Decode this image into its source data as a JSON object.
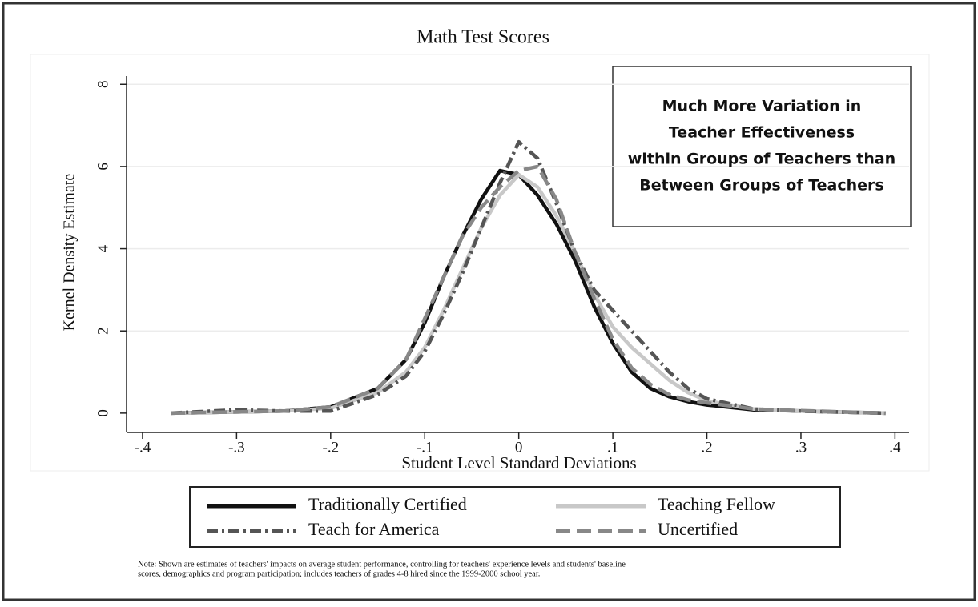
{
  "chart_data": {
    "type": "line",
    "title": "Math Test Scores",
    "xlabel": "Student Level Standard Deviations",
    "ylabel": "Kernel Density Estimate",
    "x": [
      -0.37,
      -0.3,
      -0.25,
      -0.2,
      -0.15,
      -0.12,
      -0.1,
      -0.08,
      -0.06,
      -0.04,
      -0.02,
      0,
      0.02,
      0.04,
      0.06,
      0.08,
      0.1,
      0.12,
      0.14,
      0.16,
      0.18,
      0.2,
      0.25,
      0.3,
      0.39
    ],
    "series": [
      {
        "name": "Traditionally Certified",
        "color": "#111111",
        "style": "solid",
        "values": [
          0,
          0.03,
          0.05,
          0.15,
          0.6,
          1.3,
          2.2,
          3.3,
          4.3,
          5.2,
          5.9,
          5.8,
          5.3,
          4.6,
          3.7,
          2.6,
          1.7,
          1.0,
          0.6,
          0.4,
          0.28,
          0.2,
          0.08,
          0.05,
          0
        ]
      },
      {
        "name": "Teaching Fellow",
        "color": "#c8c8c8",
        "style": "solid",
        "values": [
          0,
          0.03,
          0.05,
          0.12,
          0.5,
          1.0,
          1.6,
          2.5,
          3.5,
          4.5,
          5.3,
          5.8,
          5.5,
          4.8,
          3.9,
          2.9,
          2.1,
          1.6,
          1.2,
          0.8,
          0.5,
          0.3,
          0.1,
          0.05,
          0
        ]
      },
      {
        "name": "Teach for America",
        "color": "#555555",
        "style": "dash-dot",
        "values": [
          0,
          0.08,
          0.05,
          0.05,
          0.45,
          0.9,
          1.5,
          2.4,
          3.4,
          4.5,
          5.6,
          6.6,
          6.2,
          5.1,
          3.9,
          3.0,
          2.5,
          2.0,
          1.5,
          1.0,
          0.6,
          0.35,
          0.1,
          0.05,
          0
        ]
      },
      {
        "name": "Uncertified",
        "color": "#888888",
        "style": "dash",
        "values": [
          0,
          0.03,
          0.05,
          0.15,
          0.6,
          1.3,
          2.3,
          3.3,
          4.3,
          5.0,
          5.5,
          5.9,
          6.0,
          5.2,
          3.9,
          2.8,
          1.8,
          1.1,
          0.7,
          0.45,
          0.32,
          0.25,
          0.1,
          0.06,
          0
        ]
      }
    ],
    "xlim": [
      -0.417,
      0.415
    ],
    "ylim": [
      -0.47,
      8.2
    ],
    "xticks": [
      {
        "value": -0.4,
        "label": "-.4"
      },
      {
        "value": -0.3,
        "label": "-.3"
      },
      {
        "value": -0.2,
        "label": "-.2"
      },
      {
        "value": -0.1,
        "label": "-.1"
      },
      0,
      {
        "value": 0.1,
        "label": ".1"
      },
      {
        "value": 0.2,
        "label": ".2"
      },
      {
        "value": 0.3,
        "label": ".3"
      },
      {
        "value": 0.4,
        "label": ".4"
      }
    ],
    "yticks": [
      0,
      2,
      4,
      6,
      8
    ],
    "grid": true,
    "legend": "bottom",
    "annotation": [
      "Much More Variation in",
      "Teacher Effectiveness",
      "within Groups of Teachers than",
      "Between Groups of Teachers"
    ],
    "note": [
      "Note: Shown are estimates of teachers' impacts on average student performance, controlling for teachers' experience levels and students' baseline",
      "scores, demographics and program participation; includes teachers of grades 4-8 hired since the 1999-2000 school year."
    ]
  }
}
